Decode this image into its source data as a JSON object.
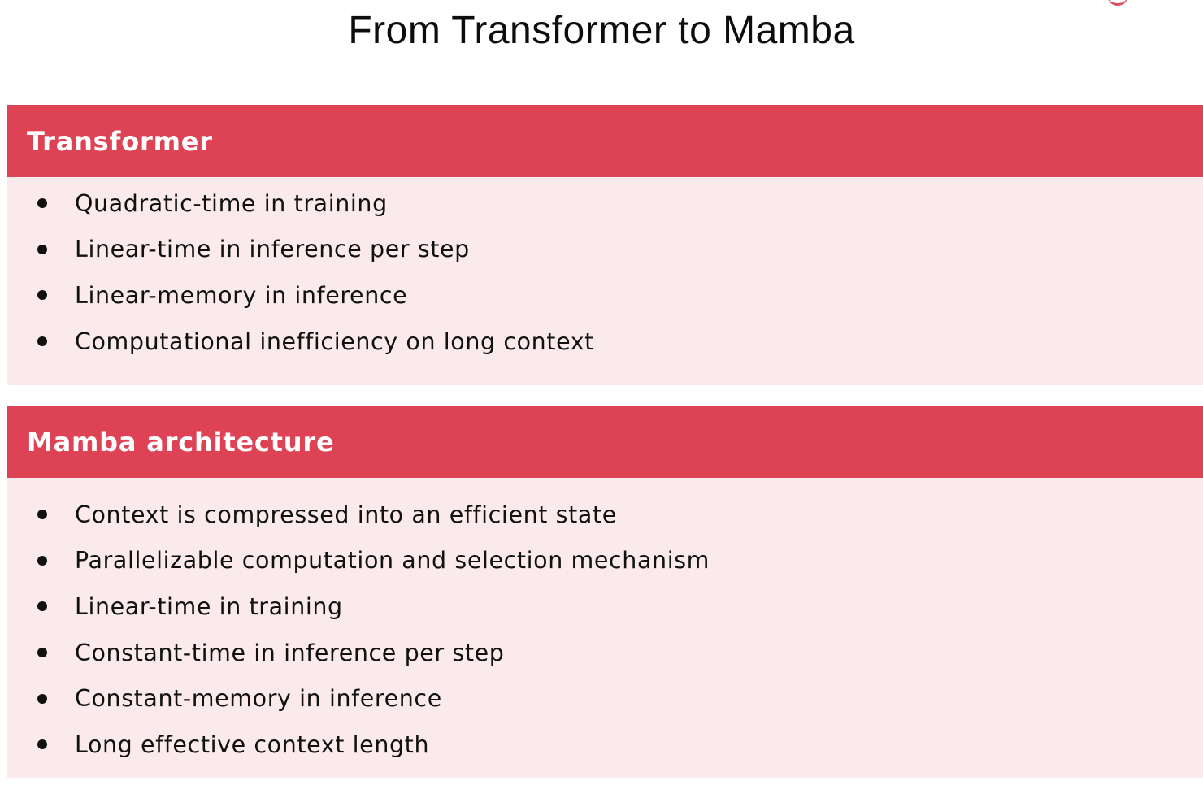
{
  "title": "From Transformer to Mamba",
  "colors": {
    "header_background": "#dd4354",
    "panel_background": "#faeaeb",
    "header_text": "#ffffff"
  },
  "sections": [
    {
      "heading": "Transformer",
      "items": [
        "Quadratic-time in training",
        "Linear-time in inference per step",
        "Linear-memory in inference",
        "Computational inefficiency on long context"
      ]
    },
    {
      "heading": "Mamba architecture",
      "items": [
        "Context is compressed into an efficient state",
        "Parallelizable computation and selection mechanism",
        "Linear-time in training",
        "Constant-time in inference per step",
        "Constant-memory in inference",
        "Long effective context length"
      ]
    }
  ]
}
